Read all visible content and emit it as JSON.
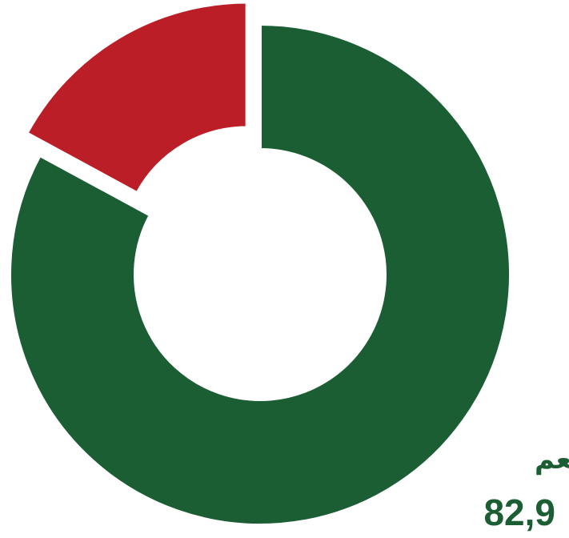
{
  "chart_data": {
    "type": "donut",
    "categories": [
      "نعم",
      null
    ],
    "values": [
      82.9,
      17.1
    ],
    "value_labels": [
      "82,9",
      null
    ],
    "colors": [
      "#1b5e33",
      "#bb1e26"
    ],
    "exploded": [
      false,
      true
    ]
  }
}
